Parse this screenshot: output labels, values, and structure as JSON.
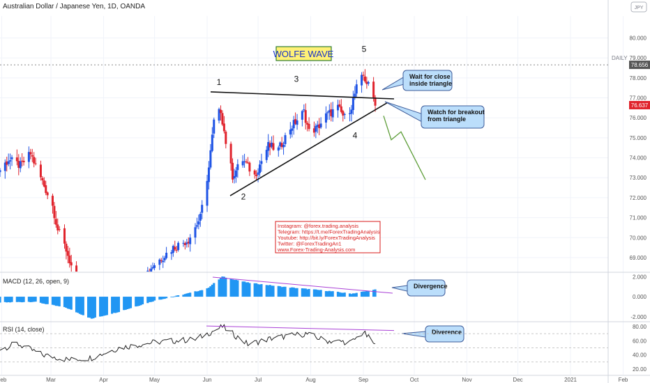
{
  "header": {
    "title": "Australian Dollar / Japanese Yen, 1D, OANDA",
    "symbol_badge": "JPY",
    "timeframe_label": "DAILY"
  },
  "colors": {
    "up": "#1e53e5",
    "down": "#e0232c",
    "macd": "#2196f3",
    "rsi": "#222222",
    "divergence": "#a93fd6",
    "annotation_fill": "#bbdefb",
    "annotation_stroke": "#3e5c9a",
    "projection": "#5d9d38",
    "last_price_tag": "#e0232c",
    "daily_tag": "#555555",
    "notes_text": "#d81b1b",
    "wave_label_bg": "#fff176",
    "wave_label_border": "#2e7d32",
    "wave_label_text": "#1a33c8"
  },
  "chart_data": [
    {
      "type": "candlestick",
      "title": "Australian Dollar / Japanese Yen, 1D, OANDA",
      "x_tick_labels": [
        "Feb",
        "Mar",
        "Apr",
        "May",
        "Jun",
        "Jul",
        "Aug",
        "Sep",
        "Oct",
        "Nov",
        "Dec",
        "2021",
        "Feb"
      ],
      "y_tick_labels": [
        "80.000",
        "79.000",
        "78.000",
        "77.000",
        "76.000",
        "75.000",
        "74.000",
        "73.000",
        "72.000",
        "71.000",
        "70.000",
        "69.000"
      ],
      "ylim": [
        68.3,
        81.1
      ],
      "price_lines": [
        {
          "label": "78.656",
          "value": 78.656
        }
      ],
      "last_price": {
        "label": "76.637",
        "value": 76.637
      },
      "ohlc_anchors": [
        {
          "date": "2020-01-27",
          "close": 73.0
        },
        {
          "date": "2020-02-05",
          "close": 73.9
        },
        {
          "date": "2020-02-12",
          "close": 73.6
        },
        {
          "date": "2020-02-18",
          "close": 74.2
        },
        {
          "date": "2020-02-25",
          "close": 72.8
        },
        {
          "date": "2020-03-02",
          "close": 71.6
        },
        {
          "date": "2020-03-05",
          "close": 70.4
        },
        {
          "date": "2020-03-10",
          "close": 69.4
        },
        {
          "date": "2020-03-18",
          "close": 67.2
        },
        {
          "date": "2020-04-23",
          "close": 67.9
        },
        {
          "date": "2020-04-30",
          "close": 68.6
        },
        {
          "date": "2020-05-12",
          "close": 69.5
        },
        {
          "date": "2020-05-21",
          "close": 69.9
        },
        {
          "date": "2020-05-28",
          "close": 71.0
        },
        {
          "date": "2020-06-02",
          "close": 73.5
        },
        {
          "date": "2020-06-05",
          "close": 75.8
        },
        {
          "date": "2020-06-09",
          "close": 76.4
        },
        {
          "date": "2020-06-12",
          "close": 74.8
        },
        {
          "date": "2020-06-16",
          "close": 73.1
        },
        {
          "date": "2020-06-22",
          "close": 73.9
        },
        {
          "date": "2020-06-29",
          "close": 73.1
        },
        {
          "date": "2020-07-07",
          "close": 74.6
        },
        {
          "date": "2020-07-13",
          "close": 74.4
        },
        {
          "date": "2020-07-20",
          "close": 75.5
        },
        {
          "date": "2020-07-28",
          "close": 76.3
        },
        {
          "date": "2020-07-31",
          "close": 75.3
        },
        {
          "date": "2020-08-05",
          "close": 75.5
        },
        {
          "date": "2020-08-10",
          "close": 76.1
        },
        {
          "date": "2020-08-17",
          "close": 76.5
        },
        {
          "date": "2020-08-21",
          "close": 76.0
        },
        {
          "date": "2020-08-25",
          "close": 76.6
        },
        {
          "date": "2020-08-28",
          "close": 77.5
        },
        {
          "date": "2020-09-01",
          "close": 78.1
        },
        {
          "date": "2020-09-04",
          "close": 77.6
        },
        {
          "date": "2020-09-08",
          "close": 76.8
        }
      ],
      "wolfe_points": [
        {
          "label": "1",
          "date": "2020-06-10",
          "value": 77.3
        },
        {
          "label": "2",
          "date": "2020-06-25",
          "value": 72.5
        },
        {
          "label": "3",
          "date": "2020-07-29",
          "value": 77.3
        },
        {
          "label": "4",
          "date": "2020-08-28",
          "value": 75.1
        },
        {
          "label": "5",
          "date": "2020-09-01",
          "value": 78.6
        }
      ],
      "pattern_label": "WOLFE WAVE",
      "annotations": [
        "Wait for close inside triangle",
        "Watch for breakout from triangle"
      ]
    },
    {
      "type": "bar",
      "title": "MACD (12, 26, open, 9)",
      "y_tick_labels": [
        "2.000",
        "0.000",
        "-2.000"
      ],
      "ylim": [
        -2.5,
        2.3
      ],
      "anchors": [
        {
          "date": "2020-01-27",
          "value": -0.6
        },
        {
          "date": "2020-02-20",
          "value": -0.5
        },
        {
          "date": "2020-03-10",
          "value": -1.1
        },
        {
          "date": "2020-03-25",
          "value": -2.2
        },
        {
          "date": "2020-04-10",
          "value": -1.5
        },
        {
          "date": "2020-05-01",
          "value": -0.4
        },
        {
          "date": "2020-05-20",
          "value": 0.3
        },
        {
          "date": "2020-06-01",
          "value": 0.8
        },
        {
          "date": "2020-06-10",
          "value": 2.0
        },
        {
          "date": "2020-06-25",
          "value": 1.4
        },
        {
          "date": "2020-07-15",
          "value": 1.0
        },
        {
          "date": "2020-08-10",
          "value": 0.6
        },
        {
          "date": "2020-08-25",
          "value": 0.3
        },
        {
          "date": "2020-09-08",
          "value": 0.7
        }
      ],
      "annotation": "Divergence"
    },
    {
      "type": "line",
      "title": "RSI (14, close)",
      "y_tick_labels": [
        "80.00",
        "60.00",
        "40.00",
        "20.00"
      ],
      "ylim": [
        12,
        86
      ],
      "anchors": [
        {
          "date": "2020-01-27",
          "value": 45
        },
        {
          "date": "2020-02-10",
          "value": 56
        },
        {
          "date": "2020-02-25",
          "value": 40
        },
        {
          "date": "2020-03-12",
          "value": 33
        },
        {
          "date": "2020-03-25",
          "value": 36
        },
        {
          "date": "2020-04-10",
          "value": 50
        },
        {
          "date": "2020-05-01",
          "value": 58
        },
        {
          "date": "2020-05-25",
          "value": 62
        },
        {
          "date": "2020-06-10",
          "value": 80
        },
        {
          "date": "2020-06-25",
          "value": 55
        },
        {
          "date": "2020-07-10",
          "value": 64
        },
        {
          "date": "2020-07-29",
          "value": 70
        },
        {
          "date": "2020-08-10",
          "value": 60
        },
        {
          "date": "2020-08-25",
          "value": 58
        },
        {
          "date": "2020-09-01",
          "value": 72
        },
        {
          "date": "2020-09-08",
          "value": 54
        }
      ],
      "annotation": "Diverence"
    }
  ],
  "notes": {
    "lines": [
      "Instagram: @forex.trading.analysis",
      "Telegram: https://t.me/ForexTradingAnalysis",
      "Youtube: http://bit.ly/ForexTradingAnalysis",
      "Twitter: @ForexTradingAn1",
      "www.Forex-Trading-Analysis.com"
    ]
  }
}
